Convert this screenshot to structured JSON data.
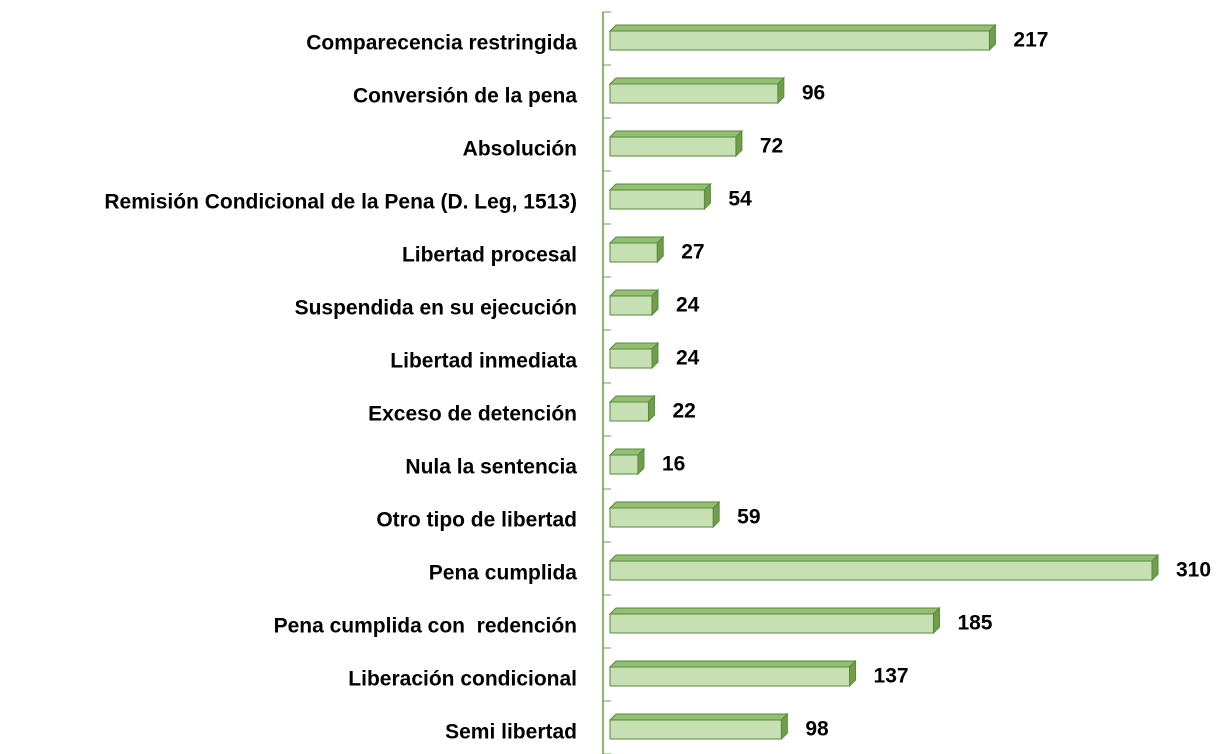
{
  "chart_data": {
    "type": "bar",
    "orientation": "horizontal",
    "categories": [
      "Comparecencia restringida",
      "Conversión de la pena",
      "Absolución",
      "Remisión Condicional de la Pena (D. Leg, 1513)",
      "Libertad procesal",
      "Suspendida en su ejecución",
      "Libertad inmediata",
      "Exceso de detención",
      "Nula la sentencia",
      "Otro tipo de libertad",
      "Pena cumplida",
      "Pena cumplida con  redención",
      "Liberación condicional",
      "Semi libertad"
    ],
    "values": [
      217,
      96,
      72,
      54,
      27,
      24,
      24,
      22,
      16,
      59,
      310,
      185,
      137,
      98
    ],
    "color": "#c6e0b4"
  }
}
